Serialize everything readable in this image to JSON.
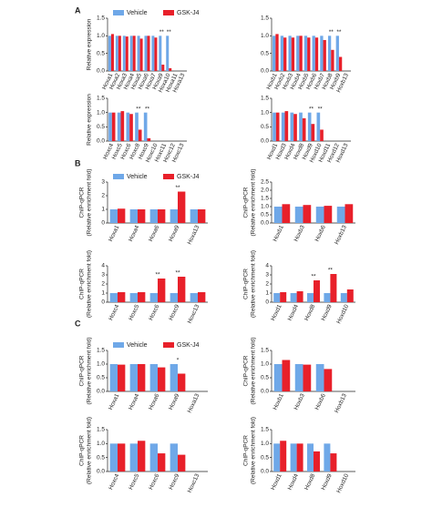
{
  "panel_labels": [
    "A",
    "B",
    "C"
  ],
  "chart_data": [
    {
      "type": "bar",
      "ylabel": [
        "Relative expression"
      ],
      "legend": "top",
      "ylim": [
        0,
        1.5
      ],
      "yticks": [
        {
          "value": 0,
          "label": "0.0"
        },
        0.5,
        {
          "value": 1,
          "label": "1.0"
        },
        1.5
      ],
      "categories": [
        "Hoxa1",
        "Hoxa2",
        "Hoxa3",
        "Hoxa4",
        "Hoxa5",
        "Hoxa6",
        "Hoxa7",
        "Hoxa9",
        "Hoxa10",
        "Hoxa11",
        "Hoxa13"
      ],
      "series": [
        {
          "name": "Vehicle",
          "color": "#6fa8e8",
          "values": [
            1,
            1,
            1,
            1,
            1,
            1,
            1,
            1,
            1,
            null,
            null
          ]
        },
        {
          "name": "GSK-J4",
          "color": "#e8202a",
          "values": [
            1.05,
            1.0,
            0.98,
            1.0,
            0.92,
            1.0,
            0.95,
            0.18,
            0.08,
            null,
            null
          ]
        }
      ],
      "annotations": [
        {
          "category": "Hoxa9",
          "text": "**"
        },
        {
          "category": "Hoxa10",
          "text": "**"
        }
      ]
    },
    {
      "type": "bar",
      "ylim": [
        0,
        1.5
      ],
      "yticks": [
        {
          "value": 0,
          "label": "0.0"
        },
        0.5,
        {
          "value": 1,
          "label": "1.0"
        },
        1.5
      ],
      "categories": [
        "Hoxb1",
        "Hoxb2",
        "Hoxb3",
        "Hoxb4",
        "Hoxb5",
        "Hoxb6",
        "Hoxb7",
        "Hoxb8",
        "Hoxb9",
        "Hoxb13"
      ],
      "series": [
        {
          "name": "Vehicle",
          "color": "#6fa8e8",
          "values": [
            1,
            1,
            1,
            1,
            1,
            1,
            1,
            1,
            1,
            null
          ]
        },
        {
          "name": "GSK-J4",
          "color": "#e8202a",
          "values": [
            1.05,
            0.95,
            0.95,
            1.0,
            0.95,
            0.95,
            0.88,
            0.6,
            0.4,
            null
          ]
        }
      ],
      "annotations": [
        {
          "category": "Hoxb8",
          "text": "**"
        },
        {
          "category": "Hoxb9",
          "text": "**"
        }
      ]
    },
    {
      "type": "bar",
      "ylabel": [
        "Relative expression"
      ],
      "ylim": [
        0,
        1.5
      ],
      "yticks": [
        {
          "value": 0,
          "label": "0.0"
        },
        0.5,
        {
          "value": 1,
          "label": "1.0"
        },
        1.5
      ],
      "categories": [
        "Hoxc4",
        "Hoxc5",
        "Hoxc6",
        "Hoxc8",
        "Hoxc9",
        "Hoxc10",
        "Hoxc11",
        "Hoxc12",
        "Hoxc13"
      ],
      "series": [
        {
          "name": "Vehicle",
          "color": "#6fa8e8",
          "values": [
            1,
            1,
            1,
            1,
            1,
            null,
            null,
            null,
            null
          ]
        },
        {
          "name": "GSK-J4",
          "color": "#e8202a",
          "values": [
            1.0,
            1.05,
            0.95,
            0.4,
            0.1,
            null,
            null,
            null,
            null
          ]
        }
      ],
      "annotations": [
        {
          "category": "Hoxc8",
          "text": "**"
        },
        {
          "category": "Hoxc9",
          "text": "**"
        }
      ]
    },
    {
      "type": "bar",
      "ylim": [
        0,
        1.5
      ],
      "yticks": [
        {
          "value": 0,
          "label": "0.0"
        },
        0.5,
        {
          "value": 1,
          "label": "1.0"
        },
        1.5
      ],
      "categories": [
        "Hoxd1",
        "Hoxd3",
        "Hoxd4",
        "Hoxd8",
        "Hoxd9",
        "Hoxd10",
        "Hoxd11",
        "Hoxd12",
        "Hoxd13"
      ],
      "series": [
        {
          "name": "Vehicle",
          "color": "#6fa8e8",
          "values": [
            1,
            1,
            1,
            1,
            1,
            1,
            null,
            null,
            null
          ]
        },
        {
          "name": "GSK-J4",
          "color": "#e8202a",
          "values": [
            1.0,
            1.05,
            0.95,
            0.8,
            0.6,
            0.4,
            null,
            null,
            null
          ]
        }
      ],
      "annotations": [
        {
          "category": "Hoxd9",
          "text": "**"
        },
        {
          "category": "Hoxd10",
          "text": "**"
        }
      ]
    },
    {
      "type": "bar",
      "ylabel": [
        "ChIP-qPCR",
        "(Relative enrichment fold)"
      ],
      "legend": "top",
      "ylim": [
        0,
        3
      ],
      "yticks": [
        0,
        1,
        2,
        3
      ],
      "categories": [
        "Hoxa1",
        "Hoxa4",
        "Hoxa6",
        "Hoxa9",
        "Hoxa13"
      ],
      "series": [
        {
          "name": "Vehicle",
          "color": "#6fa8e8",
          "values": [
            1,
            1,
            1,
            1,
            1
          ]
        },
        {
          "name": "GSK-J4",
          "color": "#e8202a",
          "values": [
            1.05,
            1.0,
            1.0,
            2.3,
            1.0
          ]
        }
      ],
      "annotations": [
        {
          "category": "Hoxa9",
          "text": "**"
        }
      ]
    },
    {
      "type": "bar",
      "ylabel": [
        "ChIP-qPCR",
        "(Relative enrichment fold)"
      ],
      "ylim": [
        0,
        2.5
      ],
      "yticks": [
        {
          "value": 0,
          "label": "0.0"
        },
        0.5,
        {
          "value": 1,
          "label": "1.0"
        },
        1.5,
        {
          "value": 2,
          "label": "2.0"
        },
        2.5
      ],
      "categories": [
        "Hoxb1",
        "Hoxb3",
        "Hoxb6",
        "Hoxb13"
      ],
      "series": [
        {
          "name": "Vehicle",
          "color": "#6fa8e8",
          "values": [
            1,
            1,
            1,
            1
          ]
        },
        {
          "name": "GSK-J4",
          "color": "#e8202a",
          "values": [
            1.15,
            1.1,
            1.05,
            1.15
          ]
        }
      ]
    },
    {
      "type": "bar",
      "ylabel": [
        "ChIP-qPCR",
        "(Relative enrichment fold)"
      ],
      "ylim": [
        0,
        4
      ],
      "yticks": [
        0,
        1,
        2,
        3,
        4
      ],
      "categories": [
        "Hoxc4",
        "Hoxc5",
        "Hoxc6",
        "Hoxc9",
        "Hoxc13"
      ],
      "series": [
        {
          "name": "Vehicle",
          "color": "#6fa8e8",
          "values": [
            1,
            1,
            1,
            1,
            1
          ]
        },
        {
          "name": "GSK-J4",
          "color": "#e8202a",
          "values": [
            1.1,
            1.1,
            2.6,
            2.8,
            1.1
          ]
        }
      ],
      "annotations": [
        {
          "category": "Hoxc6",
          "text": "**"
        },
        {
          "category": "Hoxc9",
          "text": "**"
        }
      ]
    },
    {
      "type": "bar",
      "ylabel": [
        "ChIP-qPCR",
        "(Relative enrichment fold)"
      ],
      "ylim": [
        0,
        4
      ],
      "yticks": [
        0,
        1,
        2,
        3,
        4
      ],
      "categories": [
        "Hoxd1",
        "Hoxd4",
        "Hoxd8",
        "Hoxd9",
        "Hoxd10"
      ],
      "series": [
        {
          "name": "Vehicle",
          "color": "#6fa8e8",
          "values": [
            1,
            1,
            1,
            1,
            1
          ]
        },
        {
          "name": "GSK-J4",
          "color": "#e8202a",
          "values": [
            1.1,
            1.2,
            2.4,
            3.1,
            1.4
          ]
        }
      ],
      "annotations": [
        {
          "category": "Hoxd8",
          "text": "**"
        },
        {
          "category": "Hoxd9",
          "text": "**"
        }
      ]
    },
    {
      "type": "bar",
      "ylabel": [
        "ChIP-qPCR",
        "(Relative enrichment fold)"
      ],
      "legend": "top",
      "ylim": [
        0,
        1.5
      ],
      "yticks": [
        {
          "value": 0,
          "label": "0.0"
        },
        0.5,
        {
          "value": 1,
          "label": "1.0"
        },
        1.5
      ],
      "categories": [
        "Hoxa1",
        "Hoxa4",
        "Hoxa6",
        "Hoxa9",
        "Hoxa13"
      ],
      "series": [
        {
          "name": "Vehicle",
          "color": "#6fa8e8",
          "values": [
            1,
            1,
            1,
            1,
            null
          ]
        },
        {
          "name": "GSK-J4",
          "color": "#e8202a",
          "values": [
            0.98,
            1.0,
            0.88,
            0.65,
            null
          ]
        }
      ],
      "annotations": [
        {
          "category": "Hoxa9",
          "text": "*"
        }
      ]
    },
    {
      "type": "bar",
      "ylabel": [
        "ChIP-qPCR",
        "(Relative enrichment fold)"
      ],
      "ylim": [
        0,
        1.5
      ],
      "yticks": [
        {
          "value": 0,
          "label": "0.0"
        },
        0.5,
        {
          "value": 1,
          "label": "1.0"
        },
        1.5
      ],
      "categories": [
        "Hoxb1",
        "Hoxb3",
        "Hoxb6",
        "Hoxb13"
      ],
      "series": [
        {
          "name": "Vehicle",
          "color": "#6fa8e8",
          "values": [
            1,
            1,
            1,
            null
          ]
        },
        {
          "name": "GSK-J4",
          "color": "#e8202a",
          "values": [
            1.15,
            0.98,
            0.82,
            null
          ]
        }
      ]
    },
    {
      "type": "bar",
      "ylabel": [
        "ChIP-qPCR",
        "(Relative enrichment fold)"
      ],
      "ylim": [
        0,
        1.5
      ],
      "yticks": [
        {
          "value": 0,
          "label": "0.0"
        },
        0.5,
        {
          "value": 1,
          "label": "1.0"
        },
        1.5
      ],
      "categories": [
        "Hoxc4",
        "Hoxc5",
        "Hoxc6",
        "Hoxc9",
        "Hoxc13"
      ],
      "series": [
        {
          "name": "Vehicle",
          "color": "#6fa8e8",
          "values": [
            1,
            1,
            1,
            1,
            null
          ]
        },
        {
          "name": "GSK-J4",
          "color": "#e8202a",
          "values": [
            1.0,
            1.1,
            0.65,
            0.6,
            null
          ]
        }
      ]
    },
    {
      "type": "bar",
      "ylabel": [
        "ChIP-qPCR",
        "(Relative enrichment fold)"
      ],
      "ylim": [
        0,
        1.5
      ],
      "yticks": [
        {
          "value": 0,
          "label": "0.0"
        },
        0.5,
        {
          "value": 1,
          "label": "1.0"
        },
        1.5
      ],
      "categories": [
        "Hoxd1",
        "Hoxd4",
        "Hoxd8",
        "Hoxd9",
        "Hoxd10"
      ],
      "series": [
        {
          "name": "Vehicle",
          "color": "#6fa8e8",
          "values": [
            1,
            1,
            1,
            1,
            null
          ]
        },
        {
          "name": "GSK-J4",
          "color": "#e8202a",
          "values": [
            1.1,
            1.0,
            0.72,
            0.65,
            null
          ]
        }
      ]
    }
  ]
}
